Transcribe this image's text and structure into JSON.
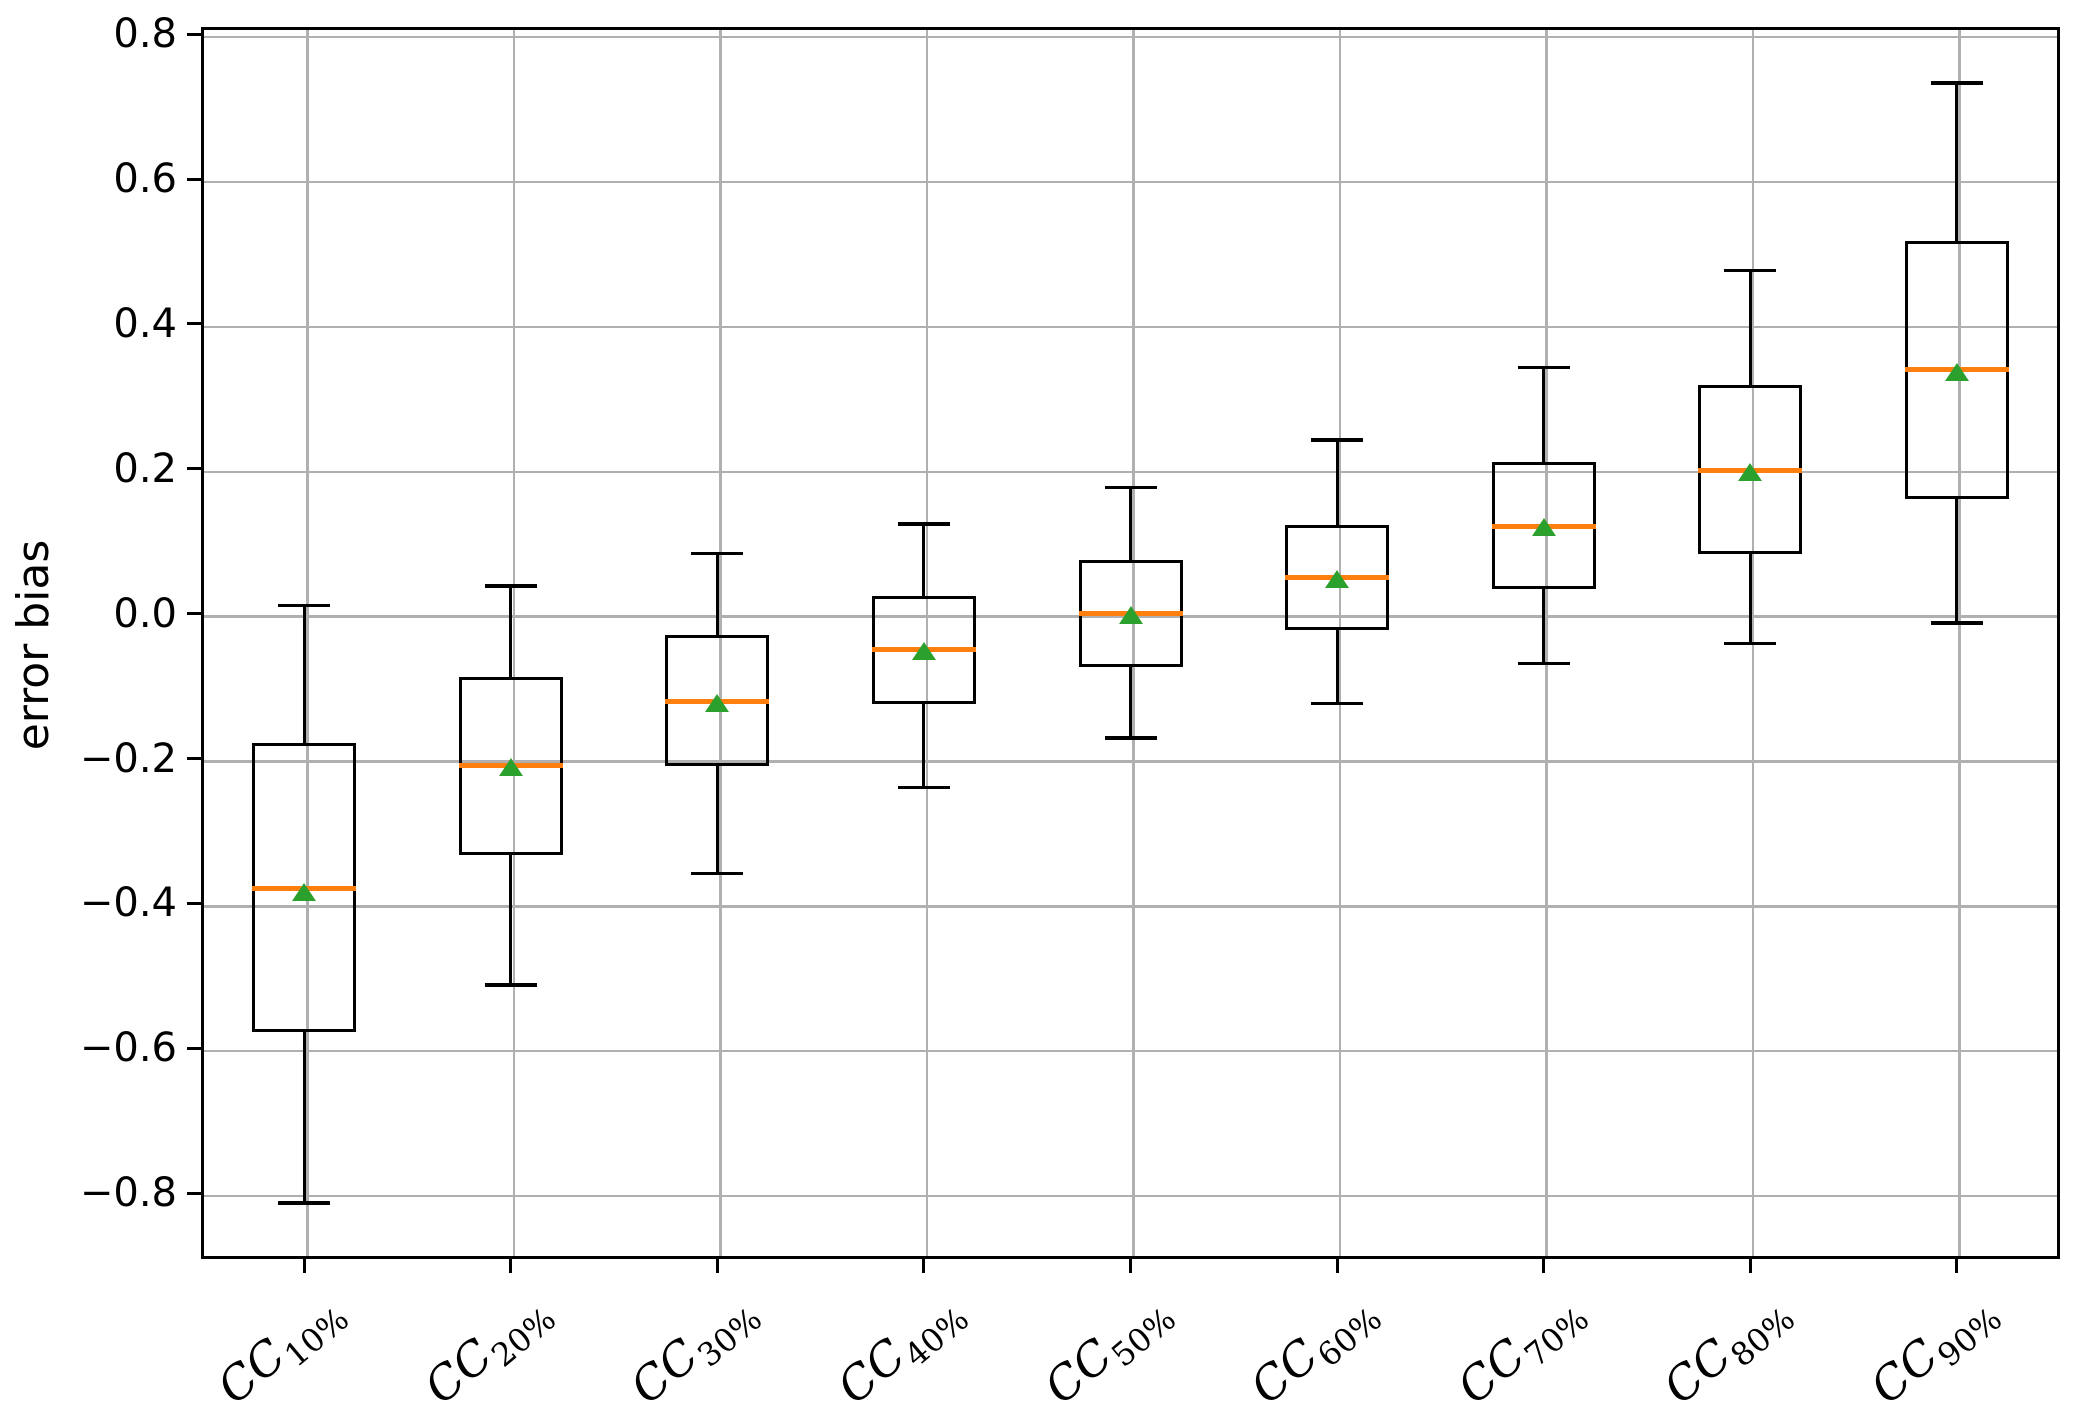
{
  "figure": {
    "background": "#ffffff"
  },
  "chart_data": {
    "type": "boxplot",
    "title": "",
    "xlabel": "",
    "ylabel": "error bias",
    "ylim": [
      -0.891,
      0.81
    ],
    "yticks": [
      0.8,
      0.6,
      0.4,
      0.2,
      0.0,
      -0.2,
      -0.4,
      -0.6,
      -0.8
    ],
    "ytick_labels": [
      "0.8",
      "0.6",
      "0.4",
      "0.2",
      "0.0",
      "−0.2",
      "−0.4",
      "−0.6",
      "−0.8"
    ],
    "grid": true,
    "legend_position": "none",
    "categories": [
      "CC 10%",
      "CC 20%",
      "CC 30%",
      "CC 40%",
      "CC 50%",
      "CC 60%",
      "CC 70%",
      "CC 80%",
      "CC 90%"
    ],
    "category_labels": [
      {
        "base": "CC",
        "subscript": "10%"
      },
      {
        "base": "CC",
        "subscript": "20%"
      },
      {
        "base": "CC",
        "subscript": "30%"
      },
      {
        "base": "CC",
        "subscript": "40%"
      },
      {
        "base": "CC",
        "subscript": "50%"
      },
      {
        "base": "CC",
        "subscript": "60%"
      },
      {
        "base": "CC",
        "subscript": "70%"
      },
      {
        "base": "CC",
        "subscript": "80%"
      },
      {
        "base": "CC",
        "subscript": "90%"
      }
    ],
    "boxes": [
      {
        "label": "CC 10%",
        "whisker_low": -0.814,
        "q1": -0.578,
        "median": -0.38,
        "mean": -0.384,
        "q3": -0.179,
        "whisker_high": 0.011
      },
      {
        "label": "CC 20%",
        "whisker_low": -0.513,
        "q1": -0.333,
        "median": -0.209,
        "mean": -0.212,
        "q3": -0.087,
        "whisker_high": 0.038
      },
      {
        "label": "CC 30%",
        "whisker_low": -0.359,
        "q1": -0.21,
        "median": -0.121,
        "mean": -0.123,
        "q3": -0.029,
        "whisker_high": 0.083
      },
      {
        "label": "CC 40%",
        "whisker_low": -0.24,
        "q1": -0.125,
        "median": -0.05,
        "mean": -0.052,
        "q3": 0.024,
        "whisker_high": 0.124
      },
      {
        "label": "CC 50%",
        "whisker_low": -0.172,
        "q1": -0.073,
        "median": 0.0,
        "mean": -0.002,
        "q3": 0.074,
        "whisker_high": 0.174
      },
      {
        "label": "CC 60%",
        "whisker_low": -0.124,
        "q1": -0.023,
        "median": 0.05,
        "mean": 0.048,
        "q3": 0.123,
        "whisker_high": 0.24
      },
      {
        "label": "CC 70%",
        "whisker_low": -0.069,
        "q1": 0.034,
        "median": 0.121,
        "mean": 0.12,
        "q3": 0.209,
        "whisker_high": 0.34
      },
      {
        "label": "CC 80%",
        "whisker_low": -0.041,
        "q1": 0.083,
        "median": 0.197,
        "mean": 0.196,
        "q3": 0.316,
        "whisker_high": 0.474
      },
      {
        "label": "CC 90%",
        "whisker_low": -0.013,
        "q1": 0.158,
        "median": 0.337,
        "mean": 0.334,
        "q3": 0.514,
        "whisker_high": 0.733
      }
    ],
    "mean_marker_shape": "triangle-up",
    "colors": {
      "box_edge": "#000000",
      "whisker": "#000000",
      "median": "#ff7f0e",
      "mean_marker": "#2ca02c",
      "grid": "#b0b0b0",
      "spine": "#000000",
      "text": "#000000"
    }
  }
}
